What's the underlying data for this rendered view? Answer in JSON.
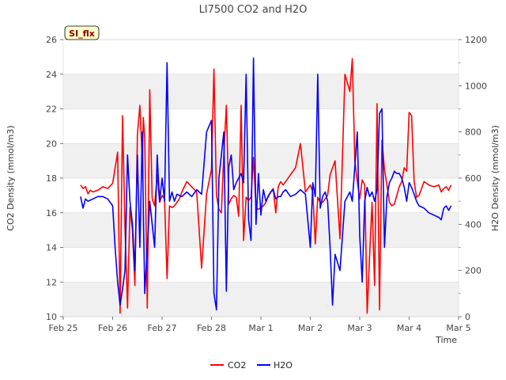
{
  "chart_data": {
    "type": "line",
    "title": "LI7500 CO2 and H2O",
    "badge": "SI_flx",
    "xlabel": "Time",
    "ylabel_left": "CO2 Density (mmol/m3)",
    "ylabel_right": "H2O Density (mmol/m3)",
    "x_ticks": [
      "Feb 25",
      "Feb 26",
      "Feb 27",
      "Feb 28",
      "Mar 1",
      "Mar 2",
      "Mar 3",
      "Mar 4",
      "Mar 5"
    ],
    "xlim_days": [
      0,
      8
    ],
    "ylim_left": [
      10,
      26
    ],
    "yticks_left": [
      10,
      12,
      14,
      16,
      18,
      20,
      22,
      24,
      26
    ],
    "ylim_right": [
      0,
      1200
    ],
    "yticks_right": [
      0,
      200,
      400,
      600,
      800,
      1000,
      1200
    ],
    "legend_position": "bottom-center",
    "colors": {
      "co2": "#ff0000",
      "h2o": "#0000ff",
      "band": "#f0f0f0",
      "grid": "#dddddd",
      "badge_fill": "#ffffcc"
    },
    "series": [
      {
        "name": "CO2",
        "axis": "left",
        "x": [
          0.35,
          0.4,
          0.45,
          0.5,
          0.55,
          0.6,
          0.7,
          0.8,
          0.9,
          1.0,
          1.1,
          1.15,
          1.2,
          1.25,
          1.3,
          1.35,
          1.4,
          1.45,
          1.5,
          1.55,
          1.6,
          1.62,
          1.65,
          1.7,
          1.75,
          1.8,
          1.85,
          1.9,
          1.95,
          2.0,
          2.05,
          2.1,
          2.15,
          2.2,
          2.25,
          2.3,
          2.35,
          2.4,
          2.45,
          2.5,
          2.6,
          2.7,
          2.8,
          2.9,
          3.0,
          3.05,
          3.1,
          3.15,
          3.2,
          3.25,
          3.3,
          3.35,
          3.4,
          3.45,
          3.5,
          3.55,
          3.6,
          3.65,
          3.7,
          3.75,
          3.8,
          3.85,
          3.9,
          3.95,
          4.0,
          4.05,
          4.1,
          4.15,
          4.2,
          4.25,
          4.3,
          4.35,
          4.4,
          4.45,
          4.5,
          4.6,
          4.7,
          4.8,
          4.9,
          5.0,
          5.05,
          5.1,
          5.15,
          5.2,
          5.25,
          5.3,
          5.35,
          5.4,
          5.5,
          5.6,
          5.7,
          5.8,
          5.85,
          5.9,
          5.95,
          6.0,
          6.05,
          6.1,
          6.15,
          6.2,
          6.25,
          6.3,
          6.35,
          6.4,
          6.45,
          6.5,
          6.55,
          6.6,
          6.65,
          6.7,
          6.75,
          6.8,
          6.85,
          6.9,
          6.95,
          7.0,
          7.05,
          7.1,
          7.15,
          7.2,
          7.3,
          7.4,
          7.5,
          7.6,
          7.65,
          7.7,
          7.75,
          7.8,
          7.85
        ],
        "values": [
          17.6,
          17.4,
          17.5,
          17.1,
          17.3,
          17.2,
          17.3,
          17.5,
          17.4,
          17.7,
          19.5,
          10.2,
          21.6,
          15.2,
          10.5,
          16.3,
          15.0,
          11.8,
          20.5,
          22.2,
          19.0,
          21.5,
          20.3,
          10.5,
          23.1,
          16.8,
          16.4,
          18.2,
          16.6,
          17.0,
          16.8,
          12.2,
          16.4,
          16.3,
          16.4,
          16.6,
          16.8,
          17.2,
          17.5,
          17.8,
          17.5,
          17.2,
          12.8,
          17.1,
          18.5,
          24.3,
          17.0,
          16.2,
          16.0,
          19.4,
          22.2,
          16.5,
          16.8,
          17.0,
          16.9,
          15.8,
          22.2,
          14.4,
          16.9,
          16.7,
          16.9,
          19.2,
          16.3,
          16.2,
          16.3,
          16.4,
          16.6,
          17.0,
          17.2,
          17.4,
          16.0,
          17.5,
          17.8,
          17.6,
          17.8,
          18.2,
          18.6,
          20.0,
          17.2,
          17.6,
          17.2,
          14.2,
          16.9,
          16.6,
          16.6,
          16.8,
          17.0,
          18.2,
          19.0,
          14.5,
          24.0,
          23.0,
          24.9,
          19.0,
          17.8,
          16.8,
          17.9,
          17.6,
          10.2,
          13.5,
          16.6,
          11.8,
          22.3,
          10.4,
          20.2,
          18.5,
          17.6,
          16.6,
          16.4,
          16.5,
          17.0,
          17.5,
          17.8,
          18.6,
          18.4,
          21.8,
          21.6,
          17.8,
          16.9,
          17.0,
          17.8,
          17.6,
          17.5,
          17.6,
          17.2,
          17.4,
          17.5,
          17.3,
          17.6
        ]
      },
      {
        "name": "H2O",
        "axis": "right",
        "x": [
          0.35,
          0.4,
          0.45,
          0.5,
          0.55,
          0.6,
          0.7,
          0.8,
          0.9,
          1.0,
          1.05,
          1.1,
          1.15,
          1.2,
          1.25,
          1.3,
          1.35,
          1.4,
          1.45,
          1.5,
          1.55,
          1.6,
          1.62,
          1.65,
          1.7,
          1.75,
          1.8,
          1.85,
          1.9,
          1.95,
          2.0,
          2.05,
          2.1,
          2.15,
          2.2,
          2.25,
          2.3,
          2.4,
          2.5,
          2.6,
          2.7,
          2.8,
          2.9,
          3.0,
          3.05,
          3.1,
          3.15,
          3.2,
          3.25,
          3.3,
          3.35,
          3.4,
          3.45,
          3.5,
          3.55,
          3.6,
          3.65,
          3.7,
          3.75,
          3.8,
          3.85,
          3.9,
          3.95,
          4.0,
          4.05,
          4.1,
          4.15,
          4.2,
          4.25,
          4.3,
          4.35,
          4.4,
          4.45,
          4.5,
          4.6,
          4.7,
          4.8,
          4.9,
          5.0,
          5.05,
          5.1,
          5.15,
          5.2,
          5.25,
          5.3,
          5.35,
          5.4,
          5.45,
          5.5,
          5.6,
          5.7,
          5.8,
          5.85,
          5.9,
          5.95,
          6.0,
          6.05,
          6.1,
          6.15,
          6.2,
          6.25,
          6.3,
          6.35,
          6.4,
          6.45,
          6.5,
          6.55,
          6.6,
          6.65,
          6.7,
          6.75,
          6.8,
          6.85,
          6.9,
          6.95,
          7.0,
          7.05,
          7.1,
          7.15,
          7.2,
          7.3,
          7.4,
          7.5,
          7.6,
          7.65,
          7.7,
          7.75,
          7.8,
          7.85
        ],
        "values": [
          520,
          470,
          510,
          500,
          505,
          510,
          520,
          520,
          510,
          480,
          300,
          150,
          50,
          120,
          200,
          700,
          500,
          400,
          200,
          700,
          300,
          800,
          450,
          100,
          300,
          500,
          400,
          300,
          700,
          500,
          600,
          500,
          1100,
          500,
          540,
          500,
          530,
          520,
          540,
          520,
          550,
          530,
          800,
          850,
          100,
          30,
          600,
          700,
          800,
          110,
          650,
          700,
          550,
          580,
          600,
          620,
          580,
          1050,
          420,
          330,
          1120,
          400,
          620,
          440,
          550,
          500,
          520,
          540,
          550,
          510,
          520,
          520,
          540,
          550,
          520,
          530,
          550,
          530,
          300,
          580,
          520,
          1050,
          470,
          520,
          540,
          500,
          300,
          50,
          270,
          200,
          500,
          540,
          500,
          650,
          800,
          350,
          150,
          500,
          560,
          520,
          540,
          500,
          550,
          880,
          900,
          300,
          520,
          580,
          600,
          630,
          620,
          620,
          600,
          560,
          500,
          580,
          560,
          530,
          500,
          480,
          470,
          450,
          440,
          430,
          420,
          470,
          480,
          460,
          480
        ]
      }
    ]
  }
}
